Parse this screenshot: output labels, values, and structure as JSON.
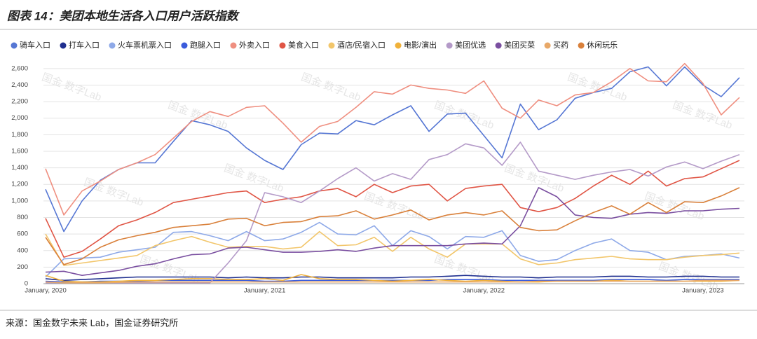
{
  "chart_data": {
    "type": "line",
    "title": "图表 14：美团本地生活各入口用户活跃指数",
    "source": "来源：国金数字未来 Lab，国金证券研究所",
    "watermark": "国金 数字Lab",
    "categories": [
      "January, 2020",
      null,
      null,
      null,
      null,
      null,
      null,
      null,
      null,
      null,
      null,
      null,
      "January, 2021",
      null,
      null,
      null,
      null,
      null,
      null,
      null,
      null,
      null,
      null,
      null,
      "January, 2022",
      null,
      null,
      null,
      null,
      null,
      null,
      null,
      null,
      null,
      null,
      null,
      "January, 2023",
      null,
      null
    ],
    "ylim": [
      0,
      2700
    ],
    "yticks": [
      0,
      200,
      400,
      600,
      800,
      {
        "value": 1000,
        "label": "1,000"
      },
      {
        "value": 1200,
        "label": "1,200"
      },
      {
        "value": 1400,
        "label": "1,400"
      },
      {
        "value": 1600,
        "label": "1,600"
      },
      {
        "value": 1800,
        "label": "1,800"
      },
      {
        "value": 2000,
        "label": "2,000"
      },
      {
        "value": 2200,
        "label": "2,200"
      },
      {
        "value": 2400,
        "label": "2,400"
      },
      {
        "value": 2600,
        "label": "2,600"
      }
    ],
    "grid": true,
    "series": [
      {
        "name": "骑车入口",
        "color": "#5677d4",
        "values": [
          1140,
          630,
          1000,
          1250,
          1380,
          1460,
          1460,
          1720,
          1970,
          1920,
          1840,
          1640,
          1490,
          1380,
          1680,
          1820,
          1810,
          1970,
          1920,
          2040,
          2150,
          1840,
          2050,
          2060,
          1790,
          1520,
          2170,
          1860,
          1980,
          2240,
          2310,
          2360,
          2560,
          2620,
          2390,
          2620,
          2400,
          2260,
          2490
        ]
      },
      {
        "name": "打车入口",
        "color": "#1f2f8f",
        "values": [
          60,
          40,
          50,
          60,
          70,
          80,
          80,
          80,
          80,
          80,
          70,
          80,
          70,
          70,
          80,
          80,
          70,
          70,
          70,
          70,
          80,
          80,
          90,
          100,
          90,
          80,
          80,
          70,
          80,
          80,
          80,
          90,
          90,
          80,
          80,
          90,
          90,
          80,
          80
        ]
      },
      {
        "name": "火车票机票入口",
        "color": "#8ea9e8",
        "values": [
          80,
          300,
          310,
          320,
          380,
          410,
          440,
          620,
          630,
          580,
          520,
          630,
          520,
          540,
          620,
          740,
          600,
          590,
          700,
          460,
          640,
          570,
          420,
          570,
          560,
          640,
          340,
          270,
          290,
          400,
          490,
          540,
          400,
          380,
          290,
          330,
          340,
          360,
          310
        ]
      },
      {
        "name": "跑腿入口",
        "color": "#3b5bdb",
        "values": [
          30,
          20,
          20,
          30,
          30,
          30,
          40,
          40,
          40,
          40,
          40,
          40,
          30,
          30,
          40,
          40,
          40,
          40,
          40,
          40,
          40,
          40,
          50,
          50,
          50,
          40,
          40,
          40,
          40,
          40,
          40,
          50,
          50,
          50,
          40,
          50,
          50,
          50,
          50
        ]
      },
      {
        "name": "外卖入口",
        "color": "#ef8f80",
        "values": [
          1390,
          830,
          1120,
          1240,
          1380,
          1460,
          1560,
          1760,
          1960,
          2080,
          2020,
          2130,
          2150,
          1940,
          1710,
          1900,
          1960,
          2130,
          2320,
          2290,
          2400,
          2360,
          2340,
          2300,
          2450,
          2120,
          2000,
          2220,
          2150,
          2280,
          2310,
          2440,
          2600,
          2450,
          2440,
          2660,
          2420,
          2040,
          2250
        ]
      },
      {
        "name": "美食入口",
        "color": "#e05545",
        "values": [
          790,
          320,
          390,
          540,
          700,
          770,
          860,
          980,
          1020,
          1060,
          1100,
          1120,
          980,
          1020,
          1050,
          1120,
          1150,
          1050,
          1200,
          1100,
          1180,
          1200,
          1000,
          1150,
          1180,
          1200,
          920,
          870,
          920,
          1030,
          1180,
          1310,
          1200,
          1360,
          1180,
          1270,
          1290,
          1390,
          1490
        ]
      },
      {
        "name": "酒店/民宿入口",
        "color": "#f2c66b",
        "values": [
          600,
          220,
          250,
          280,
          310,
          340,
          460,
          520,
          570,
          500,
          440,
          450,
          450,
          420,
          440,
          630,
          460,
          470,
          560,
          390,
          560,
          420,
          320,
          480,
          480,
          480,
          300,
          230,
          250,
          290,
          310,
          330,
          300,
          290,
          290,
          320,
          340,
          350,
          370
        ]
      },
      {
        "name": "电影/演出",
        "color": "#f0b13a",
        "values": [
          100,
          30,
          20,
          20,
          30,
          40,
          40,
          50,
          60,
          60,
          50,
          50,
          60,
          40,
          110,
          60,
          50,
          50,
          40,
          30,
          40,
          50,
          40,
          30,
          40,
          30,
          20,
          20,
          30,
          30,
          30,
          40,
          30,
          30,
          30,
          30,
          30,
          30,
          40
        ]
      },
      {
        "name": "美团优选",
        "color": "#b49ac8",
        "values": [
          10,
          10,
          10,
          10,
          10,
          10,
          10,
          10,
          10,
          10,
          250,
          520,
          1100,
          1050,
          980,
          1120,
          1270,
          1400,
          1240,
          1330,
          1260,
          1500,
          1560,
          1690,
          1640,
          1430,
          1710,
          1360,
          1310,
          1260,
          1310,
          1350,
          1380,
          1300,
          1410,
          1470,
          1390,
          1480,
          1560
        ]
      },
      {
        "name": "美团买菜",
        "color": "#7a4fa0",
        "values": [
          140,
          150,
          100,
          130,
          160,
          210,
          240,
          300,
          350,
          360,
          430,
          440,
          410,
          380,
          380,
          390,
          410,
          390,
          430,
          460,
          460,
          460,
          460,
          480,
          490,
          480,
          700,
          1160,
          1050,
          830,
          800,
          790,
          840,
          860,
          850,
          880,
          880,
          900,
          910
        ]
      },
      {
        "name": "买药",
        "color": "#e8a868",
        "values": [
          20,
          10,
          10,
          10,
          15,
          20,
          20,
          20,
          20,
          20,
          20,
          20,
          20,
          20,
          20,
          20,
          20,
          20,
          20,
          20,
          20,
          20,
          20,
          20,
          20,
          20,
          20,
          30,
          30,
          30,
          30,
          30,
          30,
          30,
          30,
          30,
          40,
          40,
          40
        ]
      },
      {
        "name": "休闲玩乐",
        "color": "#d9803a",
        "values": [
          560,
          230,
          300,
          440,
          530,
          580,
          620,
          680,
          700,
          720,
          780,
          790,
          700,
          740,
          750,
          810,
          820,
          880,
          780,
          830,
          890,
          770,
          830,
          860,
          830,
          880,
          680,
          640,
          650,
          760,
          860,
          940,
          840,
          980,
          860,
          990,
          980,
          1060,
          1160
        ]
      }
    ]
  }
}
